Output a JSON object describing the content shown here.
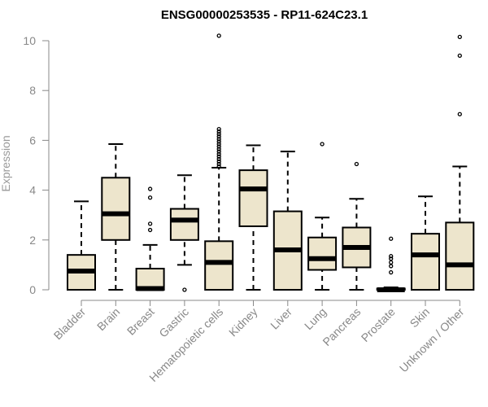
{
  "chart_data": {
    "type": "boxplot",
    "title": "ENSG00000253535 - RP11-624C23.1",
    "xlabel": "",
    "ylabel": "Expression",
    "ylim": [
      0,
      10.2
    ],
    "yticks": [
      0,
      2,
      4,
      6,
      8,
      10
    ],
    "colors": {
      "box_fill": "#ede5cc",
      "box_stroke": "#000000",
      "axis": "#888888"
    },
    "grid": false,
    "categories": [
      "Bladder",
      "Brain",
      "Breast",
      "Gastric",
      "Hematopoietic cells",
      "Kidney",
      "Liver",
      "Lung",
      "Pancreas",
      "Prostate",
      "Skin",
      "Unknown / Other"
    ],
    "boxes": [
      {
        "min": 0,
        "q1": 0,
        "median": 0.75,
        "q3": 1.4,
        "max": 3.55,
        "outliers": []
      },
      {
        "min": 0,
        "q1": 2.0,
        "median": 3.05,
        "q3": 4.5,
        "max": 5.85,
        "outliers": []
      },
      {
        "min": 0,
        "q1": 0,
        "median": 0.05,
        "q3": 0.85,
        "max": 1.8,
        "outliers": [
          2.4,
          2.65,
          3.7,
          4.05
        ]
      },
      {
        "min": 1.0,
        "q1": 2.0,
        "median": 2.8,
        "q3": 3.25,
        "max": 4.6,
        "outliers": [
          0
        ]
      },
      {
        "min": 0,
        "q1": 0,
        "median": 1.1,
        "q3": 1.95,
        "max": 4.9,
        "outliers": [
          4.95,
          5.05,
          5.15,
          5.25,
          5.35,
          5.45,
          5.55,
          5.65,
          5.75,
          5.85,
          5.95,
          6.05,
          6.15,
          6.25,
          6.35,
          6.45,
          10.2
        ]
      },
      {
        "min": 0,
        "q1": 2.55,
        "median": 4.05,
        "q3": 4.8,
        "max": 5.8,
        "outliers": []
      },
      {
        "min": 0,
        "q1": 0,
        "median": 1.6,
        "q3": 3.15,
        "max": 5.55,
        "outliers": []
      },
      {
        "min": 0,
        "q1": 0.8,
        "median": 1.25,
        "q3": 2.1,
        "max": 2.9,
        "outliers": [
          5.85
        ]
      },
      {
        "min": 0,
        "q1": 0.9,
        "median": 1.7,
        "q3": 2.5,
        "max": 3.65,
        "outliers": [
          5.05
        ]
      },
      {
        "min": 0,
        "q1": 0,
        "median": 0,
        "q3": 0.05,
        "max": 0.1,
        "outliers": [
          0.7,
          0.95,
          1.1,
          1.25,
          1.35,
          2.05
        ]
      },
      {
        "min": 0,
        "q1": 0,
        "median": 1.4,
        "q3": 2.25,
        "max": 3.75,
        "outliers": []
      },
      {
        "min": 0,
        "q1": 0,
        "median": 1.0,
        "q3": 2.7,
        "max": 4.95,
        "outliers": [
          7.05,
          9.4,
          10.15
        ]
      }
    ]
  }
}
